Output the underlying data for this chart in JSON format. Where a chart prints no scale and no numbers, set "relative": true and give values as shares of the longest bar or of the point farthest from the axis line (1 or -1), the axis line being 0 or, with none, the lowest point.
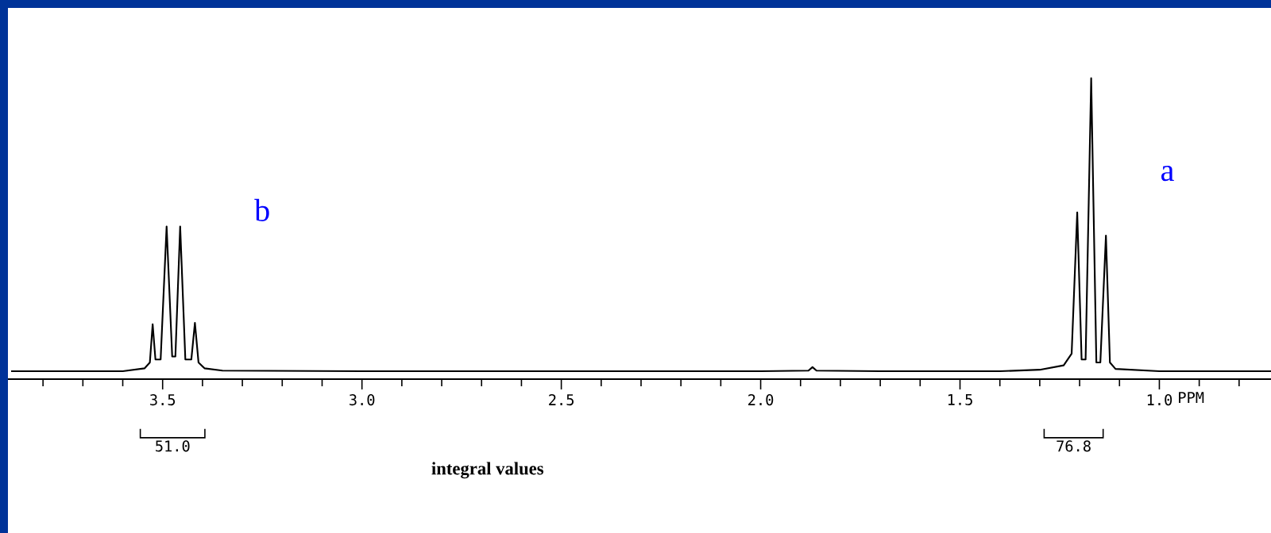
{
  "chart_data": {
    "type": "line",
    "relative": true,
    "xlabel": "PPM",
    "x": [
      3.88,
      3.6,
      3.545,
      3.532,
      3.525,
      3.518,
      3.505,
      3.49,
      3.476,
      3.468,
      3.456,
      3.443,
      3.428,
      3.419,
      3.41,
      3.395,
      3.35,
      3.0,
      2.0,
      1.88,
      1.87,
      1.86,
      1.7,
      1.4,
      1.3,
      1.24,
      1.22,
      1.206,
      1.195,
      1.185,
      1.171,
      1.158,
      1.148,
      1.134,
      1.124,
      1.11,
      1.0,
      0.72
    ],
    "series": [
      {
        "color": "#000000",
        "values": [
          0,
          0,
          0.01,
          0.03,
          0.16,
          0.04,
          0.04,
          0.494,
          0.05,
          0.05,
          0.494,
          0.04,
          0.04,
          0.165,
          0.03,
          0.01,
          0.002,
          0,
          0,
          0.002,
          0.014,
          0.002,
          0,
          0,
          0.005,
          0.02,
          0.06,
          0.542,
          0.04,
          0.04,
          1,
          0.03,
          0.03,
          0.463,
          0.03,
          0.008,
          0,
          0
        ]
      }
    ],
    "xlim": [
      3.888,
      0.72
    ],
    "xticks": [
      {
        "value": 3.8,
        "label": null
      },
      {
        "value": 3.7,
        "label": null
      },
      {
        "value": 3.6,
        "label": null
      },
      {
        "value": 3.5,
        "label": "3.5"
      },
      {
        "value": 3.4,
        "label": null
      },
      {
        "value": 3.3,
        "label": null
      },
      {
        "value": 3.2,
        "label": null
      },
      {
        "value": 3.1,
        "label": null
      },
      {
        "value": 3.0,
        "label": "3.0"
      },
      {
        "value": 2.9,
        "label": null
      },
      {
        "value": 2.8,
        "label": null
      },
      {
        "value": 2.7,
        "label": null
      },
      {
        "value": 2.6,
        "label": null
      },
      {
        "value": 2.5,
        "label": "2.5"
      },
      {
        "value": 2.4,
        "label": null
      },
      {
        "value": 2.3,
        "label": null
      },
      {
        "value": 2.2,
        "label": null
      },
      {
        "value": 2.1,
        "label": null
      },
      {
        "value": 2.0,
        "label": "2.0"
      },
      {
        "value": 1.9,
        "label": null
      },
      {
        "value": 1.8,
        "label": null
      },
      {
        "value": 1.7,
        "label": null
      },
      {
        "value": 1.6,
        "label": null
      },
      {
        "value": 1.5,
        "label": "1.5"
      },
      {
        "value": 1.4,
        "label": null
      },
      {
        "value": 1.3,
        "label": null
      },
      {
        "value": 1.2,
        "label": null
      },
      {
        "value": 1.1,
        "label": null
      },
      {
        "value": 1.0,
        "label": "1.0"
      },
      {
        "value": 0.9,
        "label": null
      },
      {
        "value": 0.8,
        "label": null
      }
    ],
    "annotations": [
      "b",
      "a",
      "51.0",
      "76.8",
      "integral values"
    ],
    "grid": false,
    "marker": "none",
    "line_style": "solid"
  }
}
